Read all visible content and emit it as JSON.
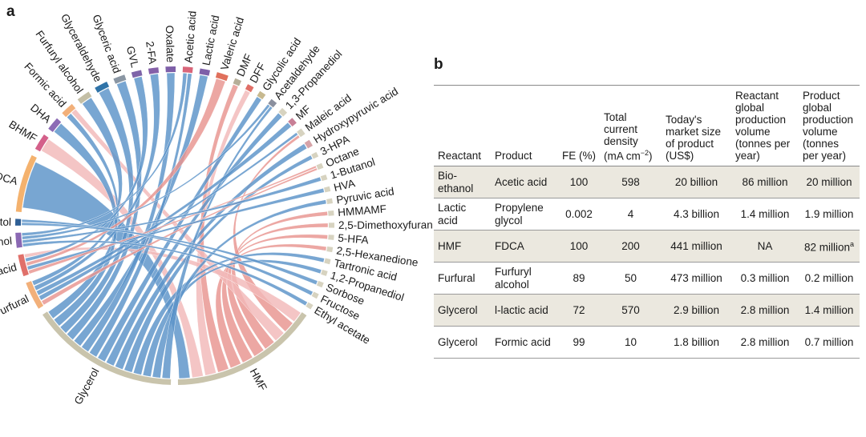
{
  "panel_a_label": "a",
  "panel_b_label": "b",
  "chord": {
    "nodes": [
      {
        "name": "Glycerol",
        "color": "#c9c4ac",
        "weight": 18
      },
      {
        "name": "HMF",
        "color": "#c9c4ac",
        "weight": 18
      },
      {
        "name": "Ethyl acetate",
        "color": "#d7d3c0",
        "weight": 0.6
      },
      {
        "name": "Fructose",
        "color": "#d7d3c0",
        "weight": 0.6
      },
      {
        "name": "Sorbose",
        "color": "#d7d3c0",
        "weight": 0.6
      },
      {
        "name": "1,2-Propanediol",
        "color": "#d7d3c0",
        "weight": 0.6
      },
      {
        "name": "Tartronic acid",
        "color": "#d7d3c0",
        "weight": 0.6
      },
      {
        "name": "2,5-Hexanedione",
        "color": "#d7d3c0",
        "weight": 0.6
      },
      {
        "name": "5-HFA",
        "color": "#d7d3c0",
        "weight": 0.6
      },
      {
        "name": "2,5-Dimethoxyfuran",
        "color": "#d7d3c0",
        "weight": 0.6
      },
      {
        "name": "HMMAMF",
        "color": "#d7d3c0",
        "weight": 0.6
      },
      {
        "name": "Pyruvic acid",
        "color": "#d7d3c0",
        "weight": 0.6
      },
      {
        "name": "HVA",
        "color": "#d7d3c0",
        "weight": 0.6
      },
      {
        "name": "1-Butanol",
        "color": "#d7d3c0",
        "weight": 0.6
      },
      {
        "name": "Octane",
        "color": "#d7d3c0",
        "weight": 0.6
      },
      {
        "name": "3-HPA",
        "color": "#d7d3c0",
        "weight": 0.6
      },
      {
        "name": "Hydroxypyruvic acid",
        "color": "#d6a3a8",
        "weight": 0.8
      },
      {
        "name": "Maleic acid",
        "color": "#d7d3c0",
        "weight": 0.8
      },
      {
        "name": "MF",
        "color": "#c77f96",
        "weight": 0.8
      },
      {
        "name": "1,3-Propanediol",
        "color": "#d7d3c0",
        "weight": 0.8
      },
      {
        "name": "Acetaldehyde",
        "color": "#8a8f9e",
        "weight": 0.8
      },
      {
        "name": "Glycolic acid",
        "color": "#c7b98f",
        "weight": 0.8
      },
      {
        "name": "DFF",
        "color": "#e06f67",
        "weight": 0.8
      },
      {
        "name": "DMF",
        "color": "#b5ae98",
        "weight": 0.8
      },
      {
        "name": "Valeric acid",
        "color": "#e0705c",
        "weight": 1.4
      },
      {
        "name": "Lactic acid",
        "color": "#7e5fa8",
        "weight": 1.2
      },
      {
        "name": "Acetic acid",
        "color": "#d9667a",
        "weight": 1.2
      },
      {
        "name": "Oxalate",
        "color": "#7e5fa8",
        "weight": 1.2
      },
      {
        "name": "2-FA",
        "color": "#8560a8",
        "weight": 1.2
      },
      {
        "name": "GVL",
        "color": "#7d63a8",
        "weight": 1.2
      },
      {
        "name": "Glyceric acid",
        "color": "#8a96a3",
        "weight": 1.4
      },
      {
        "name": "Glyceraldehyde",
        "color": "#2f73a8",
        "weight": 1.6
      },
      {
        "name": "Furfuryl alcohol",
        "color": "#c4bfa6",
        "weight": 1.6
      },
      {
        "name": "Formic acid",
        "color": "#f2b07a",
        "weight": 1.6
      },
      {
        "name": "DHA",
        "color": "#8c6bb5",
        "weight": 1.6
      },
      {
        "name": "BHMF",
        "color": "#d4608a",
        "weight": 2.0
      },
      {
        "name": "FDCA",
        "color": "#f4b26e",
        "weight": 7.0
      },
      {
        "name": "Sorbitol",
        "color": "#2f5f95",
        "weight": 0.8
      },
      {
        "name": "Ethanol",
        "color": "#8a68b3",
        "weight": 1.8
      },
      {
        "name": "Levulinic acid",
        "color": "#e0706a",
        "weight": 2.6
      },
      {
        "name": "Furfural",
        "color": "#f2b07a",
        "weight": 3.4
      }
    ],
    "links": [
      {
        "source": "HMF",
        "target": "FDCA",
        "color": "#5a93c8"
      },
      {
        "source": "HMF",
        "target": "BHMF",
        "color": "#f2b8b8"
      },
      {
        "source": "HMF",
        "target": "DFF",
        "color": "#f2b8b8"
      },
      {
        "source": "HMF",
        "target": "DMF",
        "color": "#e8948f"
      },
      {
        "source": "HMF",
        "target": "2,5-Hexanedione",
        "color": "#e8948f"
      },
      {
        "source": "HMF",
        "target": "5-HFA",
        "color": "#e8948f"
      },
      {
        "source": "HMF",
        "target": "2,5-Dimethoxyfuran",
        "color": "#e8948f"
      },
      {
        "source": "HMF",
        "target": "HMMAMF",
        "color": "#e8948f"
      },
      {
        "source": "HMF",
        "target": "Formic acid",
        "color": "#f2b8b8"
      },
      {
        "source": "HMF",
        "target": "Maleic acid",
        "color": "#e8948f"
      },
      {
        "source": "HMF",
        "target": "Levulinic acid",
        "color": "#f2b8b8"
      },
      {
        "source": "Glycerol",
        "target": "Formic acid",
        "color": "#5a93c8"
      },
      {
        "source": "Glycerol",
        "target": "DHA",
        "color": "#5a93c8"
      },
      {
        "source": "Glycerol",
        "target": "Glyceraldehyde",
        "color": "#5a93c8"
      },
      {
        "source": "Glycerol",
        "target": "Glyceric acid",
        "color": "#5a93c8"
      },
      {
        "source": "Glycerol",
        "target": "Lactic acid",
        "color": "#5a93c8"
      },
      {
        "source": "Glycerol",
        "target": "Oxalate",
        "color": "#5a93c8"
      },
      {
        "source": "Glycerol",
        "target": "Acetic acid",
        "color": "#5a93c8"
      },
      {
        "source": "Glycerol",
        "target": "Glycolic acid",
        "color": "#5a93c8"
      },
      {
        "source": "Glycerol",
        "target": "1,3-Propanediol",
        "color": "#5a93c8"
      },
      {
        "source": "Glycerol",
        "target": "Hydroxypyruvic acid",
        "color": "#5a93c8"
      },
      {
        "source": "Glycerol",
        "target": "3-HPA",
        "color": "#5a93c8"
      },
      {
        "source": "Glycerol",
        "target": "Tartronic acid",
        "color": "#5a93c8"
      },
      {
        "source": "Glycerol",
        "target": "1,2-Propanediol",
        "color": "#5a93c8"
      },
      {
        "source": "Glycerol",
        "target": "Pyruvic acid",
        "color": "#5a93c8"
      },
      {
        "source": "Glycerol",
        "target": "Acetaldehyde",
        "color": "#5a93c8"
      },
      {
        "source": "Furfural",
        "target": "Furfuryl alcohol",
        "color": "#5a93c8"
      },
      {
        "source": "Furfural",
        "target": "2-FA",
        "color": "#5a93c8"
      },
      {
        "source": "Furfural",
        "target": "MF",
        "color": "#5a93c8"
      },
      {
        "source": "Furfural",
        "target": "Maleic acid",
        "color": "#5a93c8"
      },
      {
        "source": "Furfural",
        "target": "Octane",
        "color": "#e8948f"
      },
      {
        "source": "Levulinic acid",
        "target": "GVL",
        "color": "#5a93c8"
      },
      {
        "source": "Levulinic acid",
        "target": "Valeric acid",
        "color": "#e8948f"
      },
      {
        "source": "Levulinic acid",
        "target": "HVA",
        "color": "#5a93c8"
      },
      {
        "source": "Levulinic acid",
        "target": "Octane",
        "color": "#e8948f"
      },
      {
        "source": "Ethanol",
        "target": "Acetic acid",
        "color": "#5a93c8"
      },
      {
        "source": "Ethanol",
        "target": "Acetaldehyde",
        "color": "#5a93c8"
      },
      {
        "source": "Ethanol",
        "target": "1-Butanol",
        "color": "#5a93c8"
      },
      {
        "source": "Ethanol",
        "target": "Ethyl acetate",
        "color": "#5a93c8"
      },
      {
        "source": "Sorbitol",
        "target": "Fructose",
        "color": "#5a93c8"
      },
      {
        "source": "Sorbitol",
        "target": "Sorbose",
        "color": "#5a93c8"
      }
    ]
  },
  "table": {
    "headers": {
      "reactant": "Reactant",
      "product": "Product",
      "fe": "FE (%)",
      "density_l1": "Total",
      "density_l2": "current",
      "density_l3": "density",
      "density_l4_pre": "(mA cm",
      "density_l4_sup": "−2",
      "density_l4_post": ")",
      "market_l1": "Today's",
      "market_l2": "market size",
      "market_l3": "of product",
      "market_l4": "(US$)",
      "reactvol_l1": "Reactant",
      "reactvol_l2": "global",
      "reactvol_l3": "production",
      "reactvol_l4": "volume",
      "reactvol_l5": "(tonnes per",
      "reactvol_l6": "year)",
      "prodvol_l1": "Product",
      "prodvol_l2": "global",
      "prodvol_l3": "production",
      "prodvol_l4": "volume",
      "prodvol_l5": "(tonnes",
      "prodvol_l6": "per year)"
    },
    "rows": [
      {
        "reactant": "Bio-ethanol",
        "product": "Acetic acid",
        "fe": "100",
        "density": "598",
        "market": "20 billion",
        "reactant_volume": "86 million",
        "product_volume": "20 million",
        "footnote": ""
      },
      {
        "reactant": "Lactic acid",
        "product": "Propylene glycol",
        "fe": "0.002",
        "density": "4",
        "market": "4.3 billion",
        "reactant_volume": "1.4 million",
        "product_volume": "1.9 million",
        "footnote": ""
      },
      {
        "reactant": "HMF",
        "product": "FDCA",
        "fe": "100",
        "density": "200",
        "market": "441 million",
        "reactant_volume": "NA",
        "product_volume": "82 million",
        "footnote": "a"
      },
      {
        "reactant": "Furfural",
        "product": "Furfuryl alcohol",
        "fe": "89",
        "density": "50",
        "market": "473 million",
        "reactant_volume": "0.3 million",
        "product_volume": "0.2 million",
        "footnote": ""
      },
      {
        "reactant": "Glycerol",
        "product": "l-lactic acid",
        "fe": "72",
        "density": "570",
        "market": "2.9 billion",
        "reactant_volume": "2.8 million",
        "product_volume": "1.4 million",
        "footnote": ""
      },
      {
        "reactant": "Glycerol",
        "product": "Formic acid",
        "fe": "99",
        "density": "10",
        "market": "1.8 billion",
        "reactant_volume": "2.8 million",
        "product_volume": "0.7 million",
        "footnote": ""
      }
    ]
  }
}
